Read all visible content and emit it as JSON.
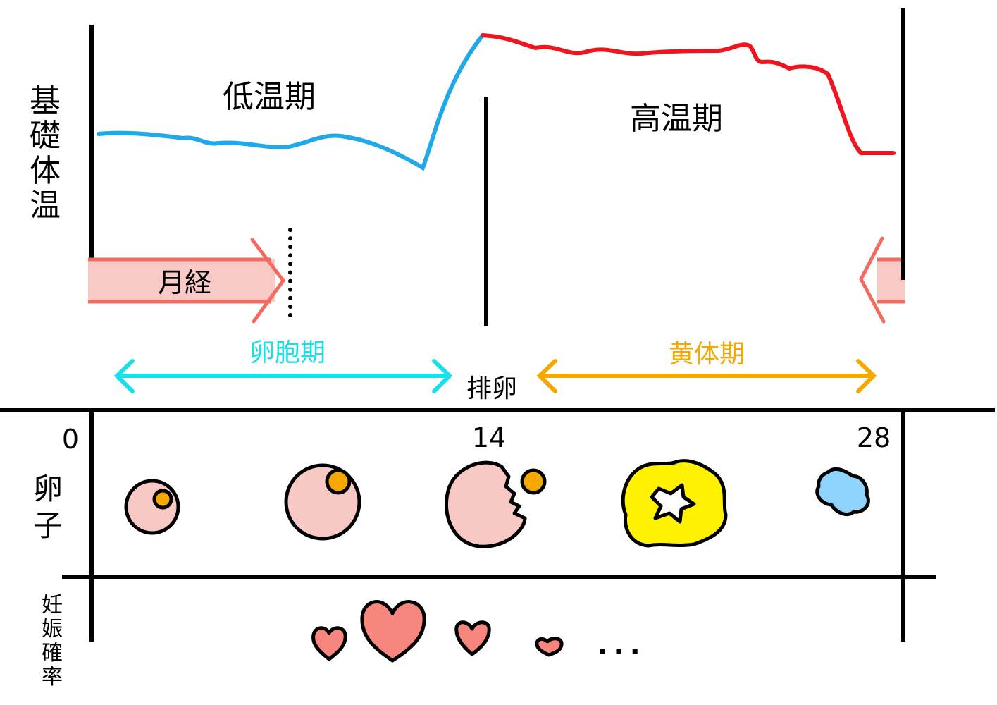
{
  "graph": {
    "y_label": [
      "基",
      "礎",
      "体",
      "温"
    ],
    "low_phase": "低温期",
    "high_phase": "高温期",
    "menstruation": "月経",
    "follicular_phase": "卵胞期",
    "ovulation": "排卵",
    "luteal_phase": "黄体期"
  },
  "timeline": {
    "day_start": "0",
    "day_mid": "14",
    "day_end": "28",
    "egg_label": [
      "卵",
      "子"
    ],
    "pregnancy_label": [
      "妊",
      "娠",
      "確",
      "率"
    ],
    "ellipsis": "..."
  },
  "colors": {
    "low_temp_line": "#1fa9e8",
    "high_temp_line": "#f0141e",
    "menstruation_fill": "#f9c9c6",
    "menstruation_stroke": "#f26a60",
    "follicular": "#19dfe8",
    "luteal": "#f5a800",
    "egg": "#f8c8c4",
    "yolk": "#f5a800",
    "corpus_luteum": "#fff200",
    "corpus_albicans": "#8dd3fb",
    "heart": "#f7877e"
  }
}
